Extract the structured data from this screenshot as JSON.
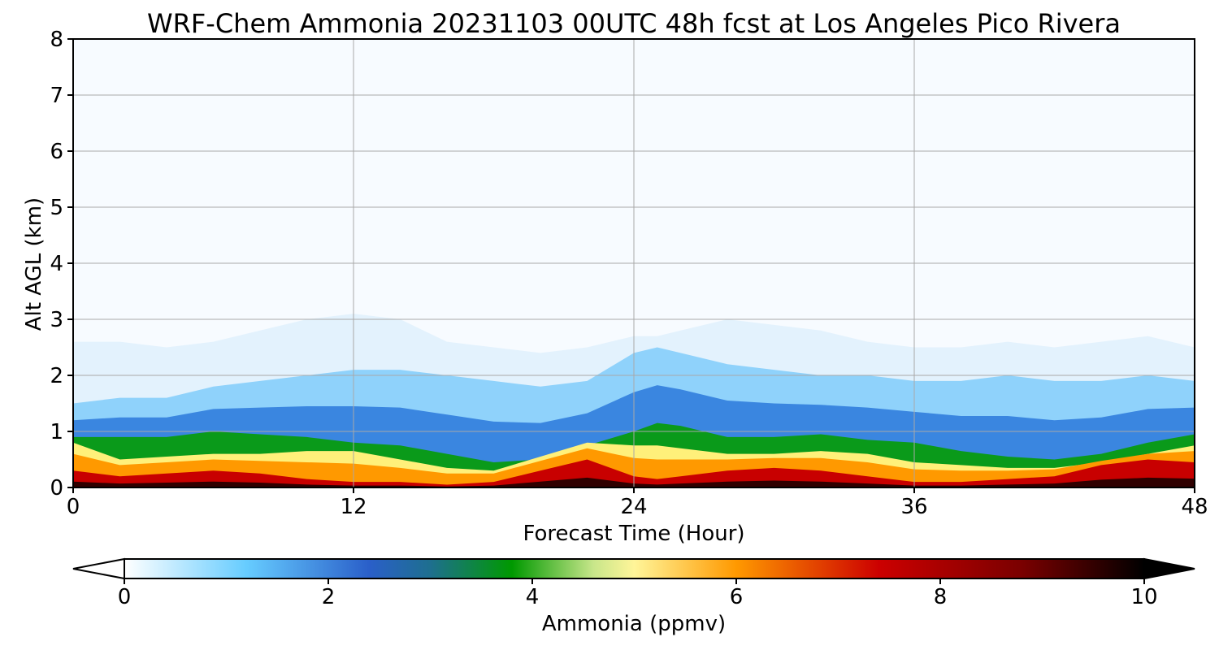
{
  "chart_data": {
    "type": "heatmap",
    "title": "WRF-Chem Ammonia  20231103 00UTC 48h fcst at Los Angeles Pico Rivera",
    "xlabel": "Forecast Time (Hour)",
    "ylabel": "Alt AGL (km)",
    "xlim": [
      0,
      48
    ],
    "ylim": [
      0,
      8
    ],
    "xticks": [
      "0",
      "12",
      "24",
      "36",
      "48"
    ],
    "yticks": [
      "0",
      "1",
      "2",
      "3",
      "4",
      "5",
      "6",
      "7",
      "8"
    ],
    "grid": true,
    "colorbar": {
      "label": "Ammonia  (ppmv)",
      "range": [
        0,
        10
      ],
      "ticks": [
        "0",
        "2",
        "4",
        "6",
        "8",
        "10"
      ],
      "extend": "both",
      "colors": [
        {
          "v": 0,
          "c": "#ffffff"
        },
        {
          "v": 1.2,
          "c": "#66ccff"
        },
        {
          "v": 2.4,
          "c": "#2a5fc9"
        },
        {
          "v": 3.0,
          "c": "#1e6f8f"
        },
        {
          "v": 3.8,
          "c": "#009900"
        },
        {
          "v": 4.6,
          "c": "#c8e68a"
        },
        {
          "v": 5.0,
          "c": "#fff599"
        },
        {
          "v": 6.0,
          "c": "#ff9900"
        },
        {
          "v": 7.4,
          "c": "#cc0000"
        },
        {
          "v": 8.8,
          "c": "#7a0000"
        },
        {
          "v": 10,
          "c": "#000000"
        }
      ]
    },
    "series_profile": {
      "hours": [
        0,
        2,
        4,
        6,
        8,
        10,
        12,
        14,
        16,
        18,
        20,
        22,
        24,
        25,
        26,
        28,
        30,
        32,
        34,
        36,
        38,
        40,
        42,
        44,
        46,
        48
      ],
      "top_of_plume_km": [
        2.6,
        2.6,
        2.5,
        2.6,
        2.8,
        3.0,
        3.1,
        3.0,
        2.6,
        2.5,
        2.4,
        2.5,
        2.7,
        2.7,
        2.8,
        3.0,
        2.9,
        2.8,
        2.6,
        2.5,
        2.5,
        2.6,
        2.5,
        2.6,
        2.7,
        2.5
      ],
      "top_of_blue_km": [
        1.5,
        1.6,
        1.6,
        1.8,
        1.9,
        2.0,
        2.1,
        2.1,
        2.0,
        1.9,
        1.8,
        1.9,
        2.4,
        2.5,
        2.4,
        2.2,
        2.1,
        2.0,
        2.0,
        1.9,
        1.9,
        2.0,
        1.9,
        1.9,
        2.0,
        1.9
      ],
      "top_of_green_km": [
        0.9,
        0.9,
        0.9,
        1.0,
        0.95,
        0.9,
        0.8,
        0.75,
        0.6,
        0.45,
        0.5,
        0.75,
        1.0,
        1.15,
        1.1,
        0.9,
        0.9,
        0.95,
        0.85,
        0.8,
        0.65,
        0.55,
        0.5,
        0.6,
        0.8,
        0.95
      ],
      "top_of_yellow_km": [
        0.8,
        0.5,
        0.55,
        0.6,
        0.6,
        0.65,
        0.65,
        0.5,
        0.35,
        0.3,
        0.55,
        0.8,
        0.75,
        0.75,
        0.7,
        0.6,
        0.6,
        0.65,
        0.6,
        0.45,
        0.4,
        0.35,
        0.35,
        0.45,
        0.6,
        0.75
      ],
      "top_of_red_km": [
        0.3,
        0.2,
        0.25,
        0.3,
        0.25,
        0.15,
        0.1,
        0.1,
        0.05,
        0.1,
        0.3,
        0.5,
        0.2,
        0.15,
        0.2,
        0.3,
        0.35,
        0.3,
        0.2,
        0.1,
        0.1,
        0.15,
        0.2,
        0.4,
        0.5,
        0.45
      ]
    }
  }
}
